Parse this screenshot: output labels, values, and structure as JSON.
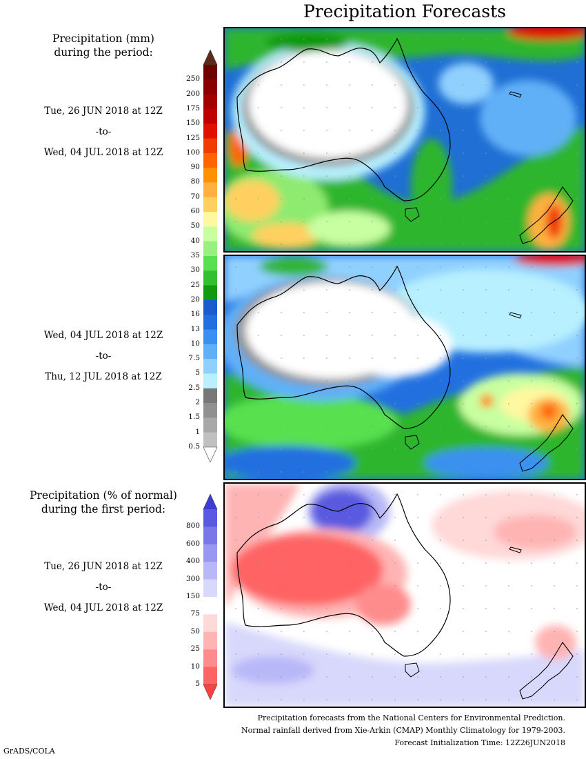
{
  "title": "Precipitation Forecasts",
  "panels": [
    {
      "heading_line1": "Precipitation (mm)",
      "heading_line2": "during the period:",
      "from": "Tue, 26 JUN 2018 at 12Z",
      "to_word": "-to-",
      "until": "Wed, 04 JUL 2018 at 12Z"
    },
    {
      "from": "Wed, 04 JUL 2018 at 12Z",
      "to_word": "-to-",
      "until": "Thu, 12 JUL 2018 at 12Z"
    },
    {
      "heading_line1": "Precipitation (% of normal)",
      "heading_line2": "during the first period:",
      "from": "Tue, 26 JUN 2018 at 12Z",
      "to_word": "-to-",
      "until": "Wed, 04 JUL 2018 at 12Z"
    }
  ],
  "precip_scale": {
    "labels": [
      "250",
      "200",
      "175",
      "150",
      "125",
      "100",
      "90",
      "80",
      "70",
      "60",
      "50",
      "40",
      "35",
      "30",
      "25",
      "20",
      "16",
      "13",
      "10",
      "7.5",
      "5",
      "2.5",
      "2",
      "1.5",
      "1",
      "0.5"
    ],
    "colors": [
      "#700000",
      "#8a0000",
      "#a40000",
      "#c00000",
      "#e01000",
      "#f03c00",
      "#ff6400",
      "#ff9000",
      "#ffb040",
      "#ffd060",
      "#fff8a0",
      "#c8ffa0",
      "#98f080",
      "#58e050",
      "#30c030",
      "#109a10",
      "#1a5cd0",
      "#2270e0",
      "#3a90f0",
      "#60b0f8",
      "#90d0ff",
      "#b8f0ff",
      "#787878",
      "#909090",
      "#a8a8a8",
      "#c0c0c0"
    ],
    "low_color": "#ffffff",
    "high_color": "#5a2a1a"
  },
  "pct_scale": {
    "labels": [
      "800",
      "600",
      "400",
      "300",
      "150",
      "75",
      "50",
      "25",
      "10",
      "5"
    ],
    "colors": [
      "#5a5ae0",
      "#7878e8",
      "#9898f0",
      "#b8b8f8",
      "#d8d8fc",
      "#ffffff",
      "#ffd8d8",
      "#ffb4b4",
      "#ff8c8c",
      "#ff6464"
    ],
    "high_color": "#3c3cd8",
    "low_color": "#ff4040"
  },
  "footer": {
    "line1": "Precipitation forecasts from the National Centers for Environmental Prediction.",
    "line2": "Normal rainfall derived from Xie-Arkin (CMAP) Monthly Climatology for 1979-2003.",
    "line3": "Forecast Initialization Time: 12Z26JUN2018"
  },
  "credit": "GrADS/COLA"
}
